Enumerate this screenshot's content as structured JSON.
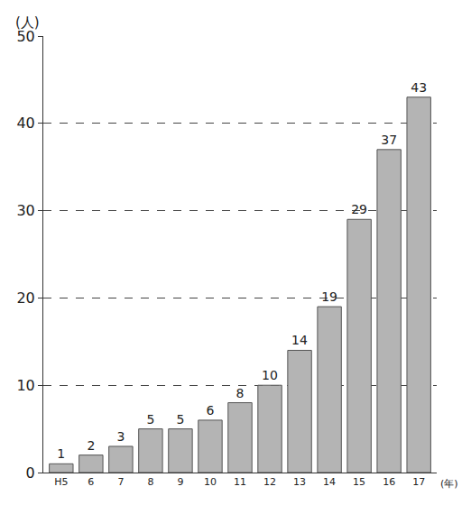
{
  "chart_data": {
    "type": "bar",
    "y_label": "(人)",
    "x_label": "(年)",
    "categories": [
      "H5",
      "6",
      "7",
      "8",
      "9",
      "10",
      "11",
      "12",
      "13",
      "14",
      "15",
      "16",
      "17"
    ],
    "values": [
      1,
      2,
      3,
      5,
      5,
      6,
      8,
      10,
      14,
      19,
      29,
      37,
      43
    ],
    "color": "#b4b4b4",
    "ylim": [
      0,
      50
    ],
    "yticks": [
      0,
      10,
      20,
      30,
      40,
      50
    ],
    "grid": true,
    "data_labels": true
  }
}
